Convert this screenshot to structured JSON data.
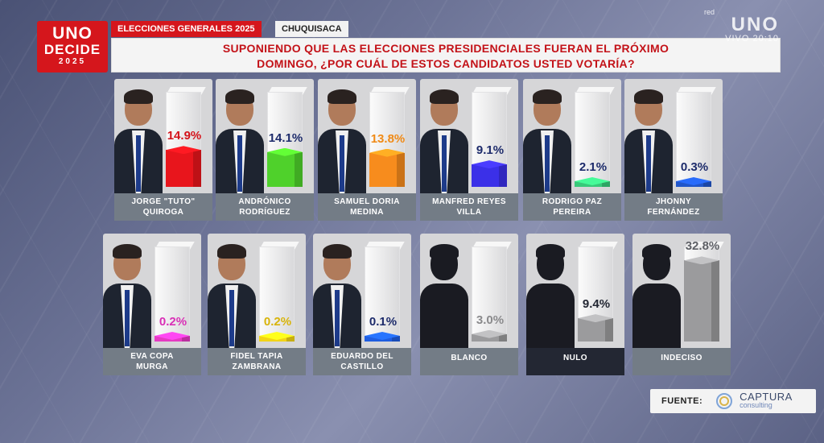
{
  "header": {
    "logo": {
      "line1": "UNO",
      "line2": "DECIDE",
      "line3": "2025"
    },
    "event": "ELECCIONES GENERALES 2025",
    "department": "CHUQUISACA",
    "question_line1": "SUPONIENDO QUE LAS ELECCIONES PRESIDENCIALES FUERAN EL PRÓXIMO",
    "question_line2": "DOMINGO, ¿POR CUÁL DE ESTOS CANDIDATOS USTED VOTARÍA?"
  },
  "broadcaster": {
    "red": "red",
    "name": "UNO",
    "live": "VIVO 20:10"
  },
  "source": {
    "label": "FUENTE:",
    "brand": "CAPTURA",
    "brand_sub": "consulting"
  },
  "chart_data": {
    "type": "bar",
    "title": "SUPONIENDO QUE LAS ELECCIONES PRESIDENCIALES FUERAN EL PRÓXIMO DOMINGO, ¿POR CUÁL DE ESTOS CANDIDATOS USTED VOTARÍA?",
    "ylim": [
      0,
      100
    ],
    "unit": "%",
    "bars": [
      {
        "line1": "JORGE \"TUTO\"",
        "line2": "QUIROGA",
        "value": 14.9,
        "label": "14.9%",
        "color": "#e8151c",
        "label_color": "#d4121a",
        "photo": "person",
        "dark": false
      },
      {
        "line1": "ANDRÓNICO",
        "line2": "RODRÍGUEZ",
        "value": 14.1,
        "label": "14.1%",
        "color": "#4fd12b",
        "label_color": "#1d2b6b",
        "photo": "person",
        "dark": false
      },
      {
        "line1": "SAMUEL DORIA",
        "line2": "MEDINA",
        "value": 13.8,
        "label": "13.8%",
        "color": "#f78c1d",
        "label_color": "#f08a16",
        "photo": "person",
        "dark": false
      },
      {
        "line1": "MANFRED REYES",
        "line2": "VILLA",
        "value": 9.1,
        "label": "9.1%",
        "color": "#3b30e8",
        "label_color": "#1d2b6b",
        "photo": "person",
        "dark": false
      },
      {
        "line1": "RODRIGO PAZ",
        "line2": "PEREIRA",
        "value": 2.1,
        "label": "2.1%",
        "color": "#38c97a",
        "label_color": "#1d2b6b",
        "photo": "person",
        "dark": false
      },
      {
        "line1": "JHONNY",
        "line2": "FERNÁNDEZ",
        "value": 0.3,
        "label": "0.3%",
        "color": "#2156c9",
        "label_color": "#1d2b6b",
        "photo": "person",
        "dark": false
      },
      {
        "line1": "EVA COPA",
        "line2": "MURGA",
        "value": 0.2,
        "label": "0.2%",
        "color": "#e53ac2",
        "label_color": "#d92fb6",
        "photo": "person",
        "dark": false
      },
      {
        "line1": "FIDEL TAPIA",
        "line2": "ZAMBRANA",
        "value": 0.2,
        "label": "0.2%",
        "color": "#f2d416",
        "label_color": "#d8b40a",
        "photo": "person",
        "dark": false
      },
      {
        "line1": "EDUARDO DEL",
        "line2": "CASTILLO",
        "value": 0.1,
        "label": "0.1%",
        "color": "#1f5de0",
        "label_color": "#1d2b6b",
        "photo": "person",
        "dark": false
      },
      {
        "line1": "BLANCO",
        "line2": "",
        "value": 3.0,
        "label": "3.0%",
        "color": "#9b9b9d",
        "label_color": "#8a8a8c",
        "photo": "silhouette",
        "dark": false
      },
      {
        "line1": "NULO",
        "line2": "",
        "value": 9.4,
        "label": "9.4%",
        "color": "#9b9b9d",
        "label_color": "#232733",
        "photo": "silhouette",
        "dark": true
      },
      {
        "line1": "INDECISO",
        "line2": "",
        "value": 32.8,
        "label": "32.8%",
        "color": "#9b9b9d",
        "label_color": "#5e6066",
        "photo": "silhouette",
        "dark": false
      }
    ]
  }
}
